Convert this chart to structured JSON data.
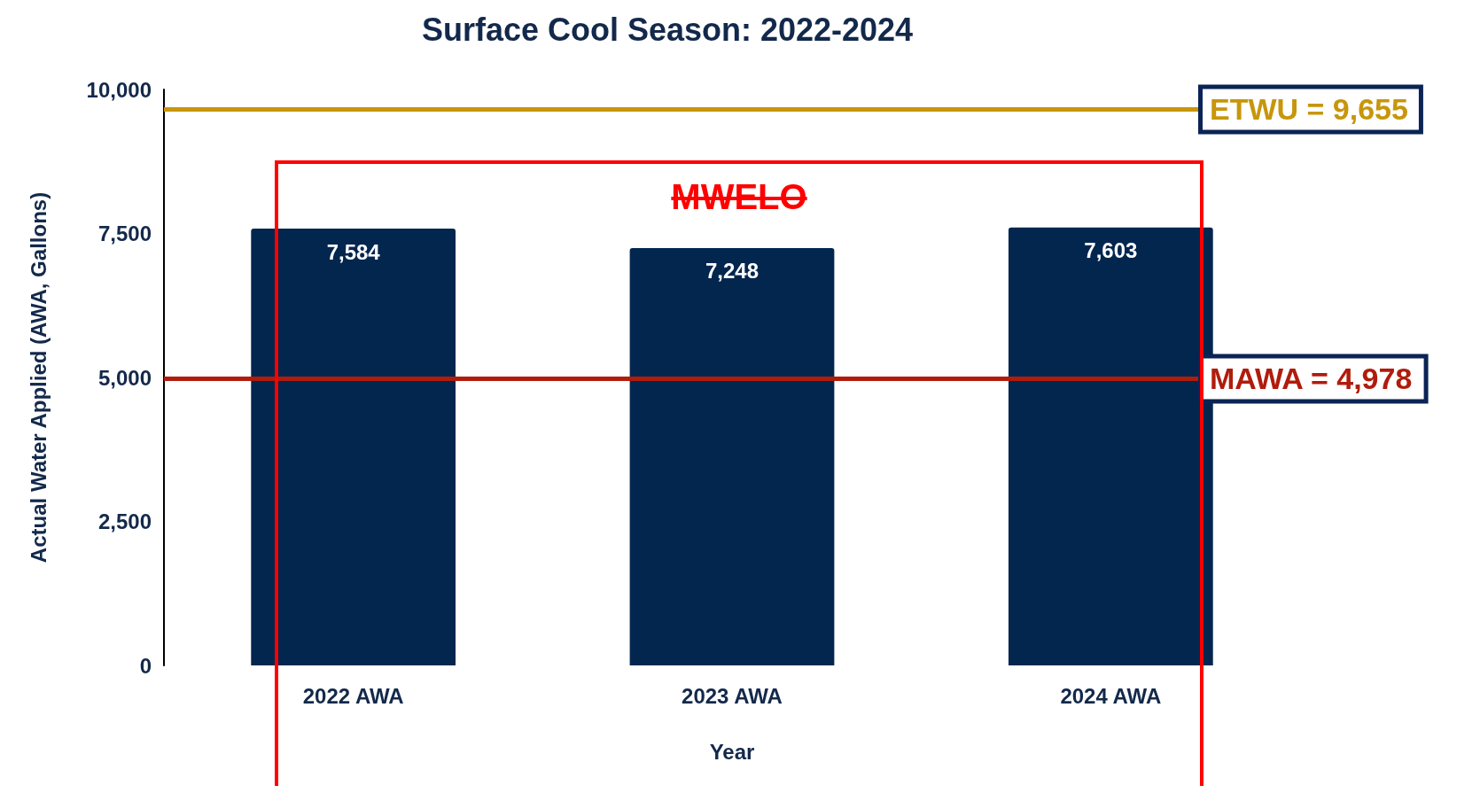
{
  "chart_data": {
    "type": "bar",
    "title": "Surface Cool Season: 2022-2024",
    "xlabel": "Year",
    "ylabel": "Actual Water Applied (AWA, Gallons)",
    "categories": [
      "2022 AWA",
      "2023 AWA",
      "2024 AWA"
    ],
    "values": [
      7584,
      7248,
      7603
    ],
    "value_labels": [
      "7,584",
      "7,248",
      "7,603"
    ],
    "color": "#03264f",
    "ylim": [
      0,
      10000
    ],
    "yticks": [
      {
        "value": 0,
        "label": "0"
      },
      {
        "value": 2500,
        "label": "2,500"
      },
      {
        "value": 5000,
        "label": "5,000"
      },
      {
        "value": 7500,
        "label": "7,500"
      },
      {
        "value": 10000,
        "label": "10,000"
      }
    ],
    "grid": false,
    "ref_lines": [
      {
        "axis": "y",
        "value": 9655,
        "label": "ETWU = 9,655",
        "color": "#c8960c"
      },
      {
        "axis": "y",
        "value": 4978,
        "label": "MAWA = 4,978",
        "color": "#b01c0c"
      }
    ],
    "annotations": [
      "MWELO"
    ]
  }
}
